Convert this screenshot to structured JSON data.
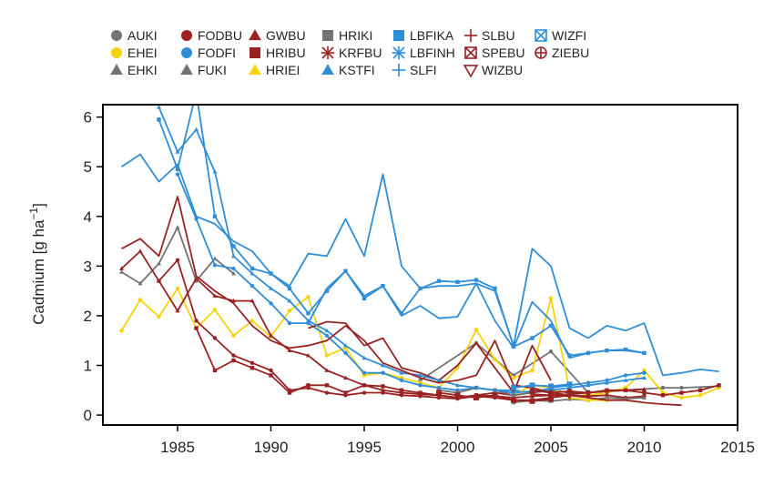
{
  "chart_data": {
    "type": "line",
    "title": "",
    "xlabel": "",
    "ylabel": "Cadmium [g ha",
    "ylabel_superscript": "−1",
    "ylabel_suffix": "]",
    "xlim": [
      1981,
      2015
    ],
    "ylim": [
      -0.2,
      6.25
    ],
    "xticks": [
      1985,
      1990,
      1995,
      2000,
      2005,
      2010,
      2015
    ],
    "yticks": [
      0,
      1,
      2,
      3,
      4,
      5,
      6
    ],
    "grid": false,
    "legend_position": "top",
    "series": [
      {
        "name": "AUKI",
        "color": "#737373",
        "marker": "circle",
        "x": [
          1998,
          2001,
          2003,
          2005,
          2007,
          2009,
          2011,
          2012,
          2014
        ],
        "y": [
          0.7,
          1.45,
          0.8,
          1.28,
          0.45,
          0.5,
          0.55,
          0.55,
          0.58
        ]
      },
      {
        "name": "EHEI",
        "color": "#f5d40c",
        "marker": "circle",
        "x": [
          1982,
          1983,
          1984,
          1985,
          1986,
          1987,
          1988,
          1989,
          1990,
          1991,
          1992,
          1993,
          1994,
          1995,
          1996,
          1997,
          1998,
          1999,
          2000,
          2001,
          2002,
          2003,
          2004,
          2005,
          2006,
          2007,
          2008,
          2009,
          2010,
          2011,
          2012,
          2013,
          2014
        ],
        "y": [
          1.7,
          2.32,
          1.98,
          2.55,
          1.75,
          2.12,
          1.6,
          1.9,
          1.58,
          2.1,
          2.38,
          1.2,
          1.35,
          0.8,
          0.85,
          0.75,
          0.65,
          0.55,
          0.95,
          1.72,
          1.12,
          0.75,
          0.9,
          2.35,
          0.5,
          0.4,
          0.45,
          0.55,
          0.9,
          0.45,
          0.35,
          0.4,
          0.55
        ]
      },
      {
        "name": "EHKI",
        "color": "#737373",
        "marker": "triangle",
        "x": [
          1982,
          1983,
          1984,
          1985,
          1986,
          1987,
          1988
        ],
        "y": [
          2.88,
          2.65,
          3.05,
          3.78,
          2.7,
          3.15,
          2.85
        ]
      },
      {
        "name": "FODBU",
        "color": "#9b2222",
        "marker": "circle",
        "x": [
          1984,
          1985,
          1986,
          1987,
          1988,
          1989,
          1990,
          1991,
          1992,
          1993,
          1994,
          1995,
          1996,
          1997,
          1998,
          1999,
          2000,
          2001,
          2002,
          2003,
          2004,
          2005,
          2006,
          2007,
          2008,
          2009,
          2010
        ],
        "y": [
          2.7,
          3.12,
          1.9,
          1.55,
          1.2,
          1.05,
          0.9,
          0.5,
          0.55,
          0.45,
          0.4,
          0.45,
          0.45,
          0.4,
          0.38,
          0.35,
          0.33,
          0.38,
          0.35,
          0.3,
          0.3,
          0.35,
          0.4,
          0.38,
          0.4,
          0.35,
          0.38
        ]
      },
      {
        "name": "FODFI",
        "color": "#2f8ed8",
        "marker": "circle",
        "x": [
          1985,
          1986,
          1987,
          1988,
          1989,
          1990,
          1991,
          1992,
          1993,
          1994,
          1995,
          1996,
          1997,
          1998,
          1999,
          2000,
          2001,
          2002,
          2003,
          2004,
          2005,
          2006,
          2007,
          2008,
          2009,
          2010
        ],
        "y": [
          4.85,
          3.95,
          3.02,
          2.95,
          2.6,
          2.25,
          1.85,
          1.85,
          1.6,
          1.25,
          0.85,
          0.85,
          0.7,
          0.6,
          0.55,
          0.5,
          0.55,
          0.5,
          0.5,
          0.45,
          0.55,
          0.6,
          0.65,
          0.7,
          0.8,
          0.85
        ]
      },
      {
        "name": "FUKI",
        "color": "#737373",
        "marker": "triangle",
        "x": [
          2003,
          2004,
          2005,
          2006,
          2007,
          2008,
          2009,
          2010
        ],
        "y": [
          0.25,
          0.3,
          0.28,
          0.32,
          0.3,
          0.35,
          0.33,
          0.35
        ]
      },
      {
        "name": "GWBU",
        "color": "#9b2222",
        "marker": "triangle",
        "x": [
          1982,
          1983,
          1984,
          1985,
          1986,
          1987,
          1988,
          1989,
          1990,
          1991,
          1992,
          1993,
          1994,
          1995,
          1996,
          1997,
          1998,
          1999,
          2000,
          2001,
          2002,
          2003,
          2004,
          2005,
          2006,
          2007,
          2008,
          2009,
          2010
        ],
        "y": [
          2.95,
          3.3,
          2.7,
          2.1,
          2.75,
          2.4,
          2.3,
          2.3,
          1.6,
          1.3,
          1.2,
          0.9,
          0.75,
          0.6,
          0.5,
          0.45,
          0.42,
          0.4,
          0.35,
          0.4,
          0.38,
          0.35,
          0.38,
          0.4,
          0.42,
          0.45,
          0.48,
          0.5,
          0.52
        ]
      },
      {
        "name": "HRIBU",
        "color": "#9b2222",
        "marker": "square",
        "x": [
          1986,
          1987,
          1988,
          1989,
          1990,
          1991,
          1992,
          1993,
          1994,
          1995,
          1996,
          1997,
          1998,
          1999,
          2000,
          2001,
          2002,
          2003,
          2004,
          2005,
          2006,
          2007,
          2008,
          2009,
          2010,
          2011,
          2012,
          2013,
          2014
        ],
        "y": [
          1.75,
          0.9,
          1.1,
          0.95,
          0.8,
          0.45,
          0.6,
          0.6,
          0.45,
          0.6,
          0.58,
          0.5,
          0.45,
          0.4,
          0.35,
          0.4,
          0.45,
          0.4,
          0.45,
          0.5,
          0.45,
          0.45,
          0.5,
          0.5,
          0.45,
          0.4,
          0.45,
          0.5,
          0.6
        ]
      },
      {
        "name": "HRIEI",
        "color": "#f5d40c",
        "marker": "triangle",
        "x": [
          2003,
          2004,
          2005,
          2006,
          2007,
          2008
        ],
        "y": [
          0.4,
          0.6,
          0.55,
          0.35,
          0.3,
          0.3
        ]
      },
      {
        "name": "HRIKI",
        "color": "#737373",
        "marker": "square",
        "x": [
          1999,
          2000,
          2001,
          2002,
          2003,
          2004,
          2005
        ],
        "y": [
          0.5,
          0.45,
          0.55,
          0.5,
          0.4,
          0.45,
          0.5
        ]
      },
      {
        "name": "KRFBU",
        "color": "#9b2222",
        "marker": "asterisk",
        "x": [
          1992,
          1993,
          1994,
          1995,
          1996,
          1997,
          1998,
          1999,
          2000,
          2001,
          2002,
          2003,
          2004,
          2005
        ],
        "y": [
          1.75,
          1.88,
          1.85,
          1.4,
          1.55,
          0.95,
          0.85,
          0.7,
          1.0,
          1.45,
          0.95,
          0.45,
          1.4,
          0.7
        ]
      },
      {
        "name": "KSTFI",
        "color": "#2f8ed8",
        "marker": "triangle",
        "x": [
          1984,
          1985,
          1986,
          1987,
          1988,
          1989,
          1990,
          1991,
          1992,
          1993,
          1994,
          1995,
          1996,
          1997,
          1998,
          1999,
          2000,
          2001,
          2002,
          2003,
          2004,
          2005,
          2006,
          2007,
          2008,
          2009,
          2010
        ],
        "y": [
          6.2,
          5.3,
          5.75,
          4.9,
          3.2,
          2.85,
          2.55,
          2.3,
          1.9,
          1.7,
          1.4,
          1.15,
          1.0,
          0.85,
          0.8,
          0.7,
          0.6,
          0.55,
          0.5,
          0.45,
          0.48,
          0.5,
          0.55,
          0.6,
          0.65,
          0.7,
          0.75
        ]
      },
      {
        "name": "LBFIKA",
        "color": "#2f8ed8",
        "marker": "square",
        "x": [
          1984,
          1985,
          1986,
          1987,
          1988,
          1989,
          1990,
          1991,
          1992,
          1993,
          1994,
          1995,
          1996,
          1997,
          1998,
          1999,
          2000,
          2001,
          2002,
          2003,
          2004,
          2005,
          2006,
          2007,
          2008,
          2009,
          2010
        ],
        "y": [
          5.95,
          4.95,
          6.5,
          4.0,
          3.4,
          2.95,
          2.85,
          2.55,
          2.05,
          2.5,
          2.9,
          2.35,
          2.6,
          2.05,
          2.55,
          2.7,
          2.68,
          2.72,
          2.55,
          1.38,
          1.55,
          1.8,
          1.2,
          1.25,
          1.3,
          1.32,
          1.25
        ]
      },
      {
        "name": "LBFINH",
        "color": "#2f8ed8",
        "marker": "asterisk",
        "x": [
          1992,
          1993,
          1994,
          1995,
          1996,
          1997,
          1998,
          1999,
          2000,
          2001,
          2002,
          2003,
          2004,
          2005,
          2006,
          2007,
          2008,
          2009,
          2010
        ],
        "y": [
          1.85,
          2.55,
          2.9,
          2.4,
          2.6,
          2.0,
          2.2,
          1.95,
          1.98,
          2.65,
          1.9,
          1.35,
          2.28,
          1.9,
          1.15,
          1.25,
          1.3,
          1.3,
          1.25
        ]
      },
      {
        "name": "SLFI",
        "color": "#2f8ed8",
        "marker": "plus",
        "x": [
          1982,
          1983,
          1984,
          1985,
          1986,
          1987,
          1988,
          1989,
          1990,
          1991,
          1992,
          1993,
          1994,
          1995,
          1996,
          1997,
          1998,
          1999,
          2000,
          2001,
          2002,
          2003,
          2004,
          2005,
          2006,
          2007,
          2008,
          2009,
          2010,
          2011,
          2012,
          2013,
          2014
        ],
        "y": [
          5.0,
          5.25,
          4.7,
          5.05,
          4.0,
          3.85,
          3.5,
          3.3,
          2.85,
          2.6,
          3.25,
          3.2,
          3.95,
          3.2,
          4.85,
          3.0,
          2.55,
          2.6,
          2.6,
          2.65,
          2.5,
          1.4,
          3.35,
          3.0,
          1.75,
          1.55,
          1.8,
          1.7,
          1.85,
          0.8,
          0.85,
          0.92,
          0.88
        ]
      },
      {
        "name": "SLBU",
        "color": "#9b2222",
        "marker": "plus",
        "x": [
          1982,
          1983,
          1984,
          1985,
          1986,
          1987,
          1988,
          1989,
          1990,
          1991,
          1992,
          1993,
          1994,
          1995,
          1996,
          1997,
          1998,
          1999,
          2000,
          2001,
          2002,
          2003,
          2004,
          2005,
          2006,
          2007,
          2008,
          2009,
          2010,
          2011,
          2012
        ],
        "y": [
          3.35,
          3.55,
          3.2,
          4.4,
          2.8,
          2.5,
          2.25,
          1.8,
          1.5,
          1.35,
          1.4,
          1.5,
          1.8,
          1.5,
          1.05,
          0.9,
          0.75,
          0.65,
          0.7,
          0.8,
          1.5,
          0.6,
          0.55,
          0.45,
          0.4,
          0.35,
          0.3,
          0.3,
          0.25,
          0.22,
          0.2
        ]
      },
      {
        "name": "SPEBU",
        "color": "#9b2222",
        "marker": "boxx",
        "x": [
          1999,
          2000,
          2001,
          2002,
          2003,
          2004,
          2005
        ],
        "y": [
          0.45,
          0.4,
          0.35,
          0.4,
          0.3,
          0.28,
          0.32
        ]
      },
      {
        "name": "WIZBU",
        "color": "#9b2222",
        "marker": "triangle-down",
        "x": [
          2004,
          2005,
          2006
        ],
        "y": [
          0.42,
          0.4,
          0.38
        ]
      },
      {
        "name": "WIZFI",
        "color": "#2f8ed8",
        "marker": "boxx",
        "x": [
          2003,
          2004,
          2005,
          2006
        ],
        "y": [
          0.55,
          0.6,
          0.58,
          0.62
        ]
      },
      {
        "name": "ZIEBU",
        "color": "#9b2222",
        "marker": "circleplus",
        "x": [
          2004,
          2005,
          2006,
          2007
        ],
        "y": [
          0.5,
          0.45,
          0.48,
          0.45
        ]
      }
    ]
  }
}
